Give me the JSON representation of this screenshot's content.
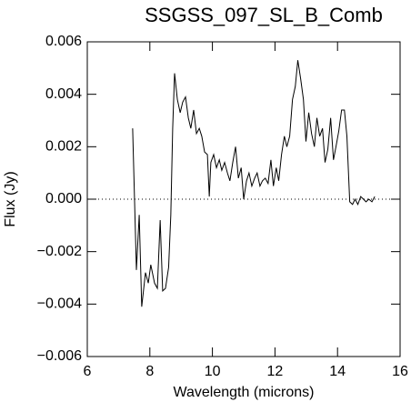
{
  "chart_data": {
    "type": "line",
    "title": "SSGSS_097_SL_B_Comb",
    "x_label": "Wavelength (microns)",
    "y_label": "Flux (Jy)",
    "xlim": [
      6,
      16
    ],
    "xticks": [
      6,
      8,
      10,
      12,
      14,
      16
    ],
    "ylim": [
      -0.006,
      0.006
    ],
    "yticks": [
      {
        "value": -0.006,
        "label": "−0.006"
      },
      {
        "value": -0.004,
        "label": "−0.004"
      },
      {
        "value": -0.002,
        "label": "−0.002"
      },
      {
        "value": 0,
        "label": "0.000"
      },
      {
        "value": 0.002,
        "label": "0.002"
      },
      {
        "value": 0.004,
        "label": "0.004"
      },
      {
        "value": 0.006,
        "label": "0.006"
      }
    ],
    "reference_line": 0,
    "series": [
      {
        "color": "#000000",
        "x": [
          7.45,
          7.57,
          7.66,
          7.74,
          7.86,
          7.95,
          8.03,
          8.15,
          8.24,
          8.33,
          8.41,
          8.5,
          8.6,
          8.67,
          8.73,
          8.79,
          8.88,
          8.97,
          9.05,
          9.14,
          9.23,
          9.31,
          9.4,
          9.49,
          9.58,
          9.66,
          9.75,
          9.84,
          9.9,
          9.95,
          10.04,
          10.13,
          10.22,
          10.3,
          10.39,
          10.48,
          10.56,
          10.65,
          10.74,
          10.83,
          10.92,
          11.0,
          11.09,
          11.17,
          11.26,
          11.35,
          11.43,
          11.52,
          11.6,
          11.69,
          11.78,
          11.87,
          11.95,
          12.04,
          12.12,
          12.21,
          12.3,
          12.38,
          12.47,
          12.56,
          12.65,
          12.73,
          12.82,
          12.91,
          12.99,
          13.08,
          13.17,
          13.26,
          13.34,
          13.43,
          13.52,
          13.6,
          13.69,
          13.78,
          13.87,
          13.95,
          14.04,
          14.13,
          14.22,
          14.3,
          14.39,
          14.48,
          14.56,
          14.65,
          14.74,
          14.83,
          14.91,
          15.0,
          15.1,
          15.19
        ],
        "values": [
          0.0027,
          -0.0027,
          -0.0006,
          -0.0041,
          -0.0028,
          -0.0032,
          -0.0025,
          -0.0032,
          -0.0034,
          -0.0008,
          -0.0035,
          -0.0034,
          -0.0026,
          -0.0006,
          0.0027,
          0.0048,
          0.0038,
          0.0033,
          0.0037,
          0.0039,
          0.0031,
          0.0027,
          0.0034,
          0.0025,
          0.0027,
          0.0024,
          0.0018,
          0.0017,
          0.0001,
          0.0014,
          0.0017,
          0.0012,
          0.0015,
          0.0011,
          0.0014,
          0.001,
          0.0007,
          0.0014,
          0.002,
          0.0008,
          0.0012,
          0.0,
          0.0007,
          0.001,
          0.0005,
          0.0008,
          0.001,
          0.0005,
          0.0007,
          0.0008,
          0.0006,
          0.0015,
          0.0005,
          0.0012,
          0.0007,
          0.0017,
          0.0024,
          0.002,
          0.0024,
          0.0038,
          0.0043,
          0.0053,
          0.0046,
          0.0038,
          0.0022,
          0.0033,
          0.0025,
          0.002,
          0.0031,
          0.0024,
          0.0027,
          0.0014,
          0.0019,
          0.0031,
          0.0015,
          0.002,
          0.0026,
          0.0034,
          0.0034,
          0.0024,
          -0.0001,
          -0.0002,
          0.0,
          -0.0002,
          0.0001,
          0.0,
          -0.0001,
          0.0,
          -0.0001,
          0.0001
        ]
      }
    ]
  }
}
